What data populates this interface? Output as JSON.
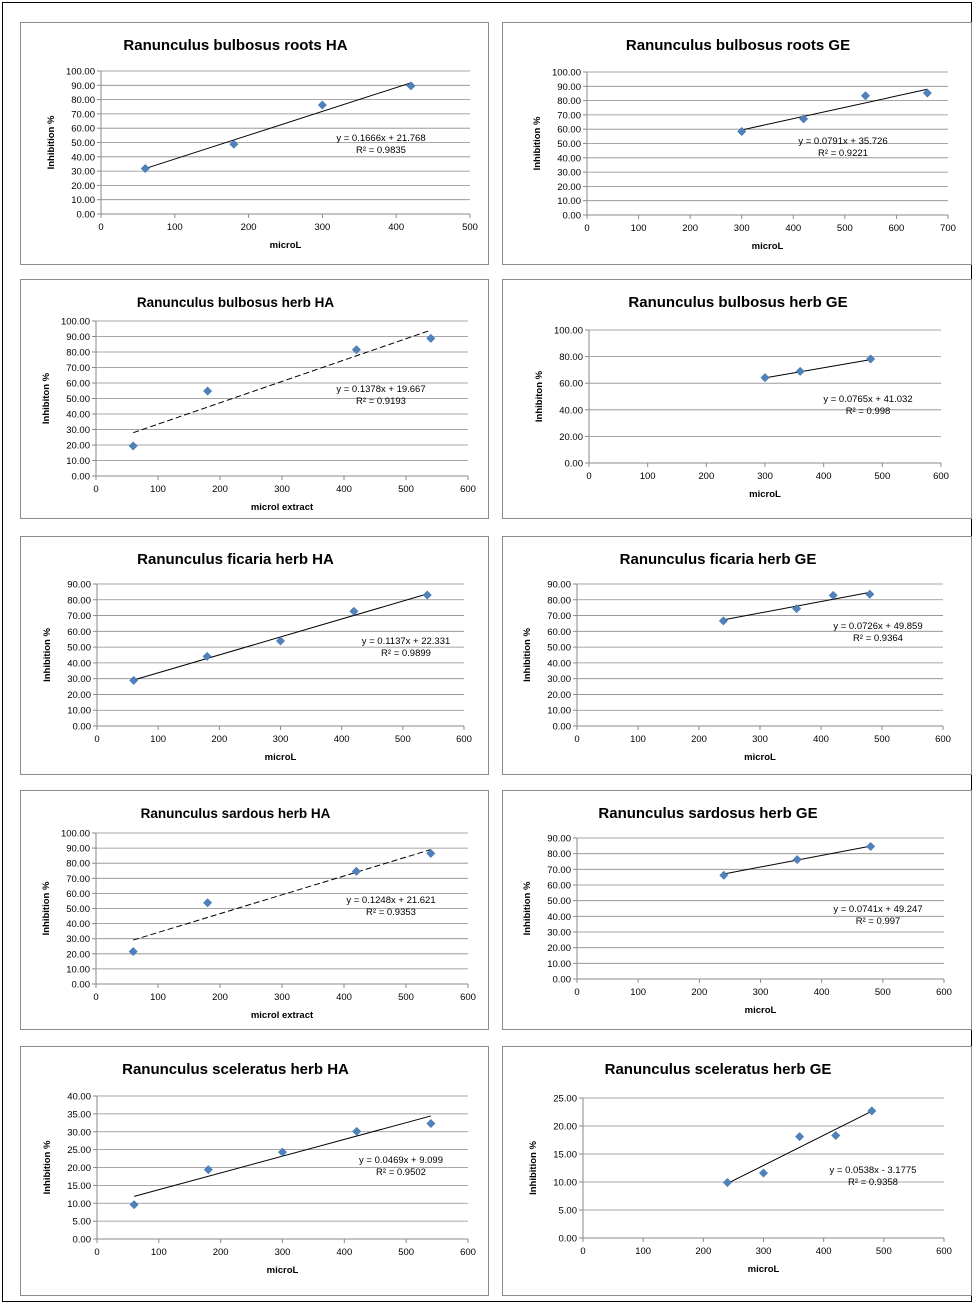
{
  "chart_data": [
    {
      "type": "scatter",
      "title": "Ranunculus bulbosus roots HA",
      "xlabel": "microL",
      "ylabel": "Inhibition %",
      "xlim": [
        0,
        500
      ],
      "xticks": [
        "0",
        "100",
        "200",
        "300",
        "400",
        "500"
      ],
      "ylim": [
        0,
        100
      ],
      "yticks": [
        "0.00",
        "10.00",
        "20.00",
        "30.00",
        "40.00",
        "50.00",
        "60.00",
        "70.00",
        "80.00",
        "90.00",
        "100.00"
      ],
      "x": [
        60,
        180,
        300,
        420
      ],
      "y": [
        31.8,
        48.8,
        76.2,
        89.6
      ],
      "trendline": {
        "slope": 0.1666,
        "intercept": 21.768,
        "style": "solid"
      },
      "equation": "y = 0.1666x + 21.768",
      "r2": "R² = 0.9835"
    },
    {
      "type": "scatter",
      "title": "Ranunculus bulbosus roots GE",
      "xlabel": "microL",
      "ylabel": "Inhibition %",
      "xlim": [
        0,
        700
      ],
      "xticks": [
        "0",
        "100",
        "200",
        "300",
        "400",
        "500",
        "600",
        "700"
      ],
      "ylim": [
        0,
        100
      ],
      "yticks": [
        "0.00",
        "10.00",
        "20.00",
        "30.00",
        "40.00",
        "50.00",
        "60.00",
        "70.00",
        "80.00",
        "90.00",
        "100.00"
      ],
      "x": [
        300,
        420,
        540,
        660
      ],
      "y": [
        58.4,
        67.2,
        83.4,
        85.3
      ],
      "trendline": {
        "slope": 0.0791,
        "intercept": 35.726,
        "style": "solid"
      },
      "equation": "y = 0.0791x + 35.726",
      "r2": "R² = 0.9221"
    },
    {
      "type": "scatter",
      "title": "Ranunculus bulbosus herb HA",
      "xlabel": "microl extract",
      "ylabel": "Inhibiton %",
      "xlim": [
        0,
        600
      ],
      "xticks": [
        "0",
        "100",
        "200",
        "300",
        "400",
        "500",
        "600"
      ],
      "ylim": [
        0,
        100
      ],
      "yticks": [
        "0.00",
        "10.00",
        "20.00",
        "30.00",
        "40.00",
        "50.00",
        "60.00",
        "70.00",
        "80.00",
        "90.00",
        "100.00"
      ],
      "x": [
        60,
        180,
        420,
        540
      ],
      "y": [
        19.4,
        54.8,
        81.5,
        88.8
      ],
      "trendline": {
        "slope": 0.1378,
        "intercept": 19.667,
        "style": "dashed"
      },
      "equation": "y = 0.1378x + 19.667",
      "r2": "R² = 0.9193"
    },
    {
      "type": "scatter",
      "title": "Ranunculus bulbosus herb GE",
      "xlabel": "microL",
      "ylabel": "Inhibiton %",
      "xlim": [
        0,
        600
      ],
      "xticks": [
        "0",
        "100",
        "200",
        "300",
        "400",
        "500",
        "600"
      ],
      "ylim": [
        0,
        100
      ],
      "yticks": [
        "0.00",
        "20.00",
        "40.00",
        "60.00",
        "80.00",
        "100.00"
      ],
      "x": [
        300,
        360,
        480
      ],
      "y": [
        64.2,
        68.9,
        78.2
      ],
      "trendline": {
        "slope": 0.0765,
        "intercept": 41.032,
        "style": "solid"
      },
      "equation": "y = 0.0765x + 41.032",
      "r2": "R² = 0.998"
    },
    {
      "type": "scatter",
      "title": "Ranunculus ficaria herb HA",
      "xlabel": "microL",
      "ylabel": "Inhibition %",
      "xlim": [
        0,
        600
      ],
      "xticks": [
        "0",
        "100",
        "200",
        "300",
        "400",
        "500",
        "600"
      ],
      "ylim": [
        0,
        90
      ],
      "yticks": [
        "0.00",
        "10.00",
        "20.00",
        "30.00",
        "40.00",
        "50.00",
        "60.00",
        "70.00",
        "80.00",
        "90.00"
      ],
      "x": [
        60,
        180,
        300,
        420,
        540
      ],
      "y": [
        28.9,
        44.1,
        53.9,
        72.7,
        83.0
      ],
      "trendline": {
        "slope": 0.1137,
        "intercept": 22.331,
        "style": "solid"
      },
      "equation": "y = 0.1137x + 22.331",
      "r2": "R² = 0.9899"
    },
    {
      "type": "scatter",
      "title": "Ranunculus ficaria herb GE",
      "xlabel": "microL",
      "ylabel": "Inhibition %",
      "xlim": [
        0,
        600
      ],
      "xticks": [
        "0",
        "100",
        "200",
        "300",
        "400",
        "500",
        "600"
      ],
      "ylim": [
        0,
        90
      ],
      "yticks": [
        "0.00",
        "10.00",
        "20.00",
        "30.00",
        "40.00",
        "50.00",
        "60.00",
        "70.00",
        "80.00",
        "90.00"
      ],
      "x": [
        240,
        360,
        420,
        480
      ],
      "y": [
        66.6,
        74.4,
        82.8,
        83.5
      ],
      "trendline": {
        "slope": 0.0726,
        "intercept": 49.859,
        "style": "solid"
      },
      "equation": "y = 0.0726x + 49.859",
      "r2": "R² = 0.9364"
    },
    {
      "type": "scatter",
      "title": "Ranunculus sardous herb HA",
      "xlabel": "microl extract",
      "ylabel": "Inhibition %",
      "xlim": [
        0,
        600
      ],
      "xticks": [
        "0",
        "100",
        "200",
        "300",
        "400",
        "500",
        "600"
      ],
      "ylim": [
        0,
        100
      ],
      "yticks": [
        "0.00",
        "10.00",
        "20.00",
        "30.00",
        "40.00",
        "50.00",
        "60.00",
        "70.00",
        "80.00",
        "90.00",
        "100.00"
      ],
      "x": [
        60,
        180,
        420,
        540
      ],
      "y": [
        21.5,
        53.8,
        74.6,
        86.5
      ],
      "trendline": {
        "slope": 0.1248,
        "intercept": 21.621,
        "style": "dashed"
      },
      "equation": "y = 0.1248x + 21.621",
      "r2": "R² = 0.9353"
    },
    {
      "type": "scatter",
      "title": "Ranunculus sardosus herb GE",
      "xlabel": "microL",
      "ylabel": "Inhibition %",
      "xlim": [
        0,
        600
      ],
      "xticks": [
        "0",
        "100",
        "200",
        "300",
        "400",
        "500",
        "600"
      ],
      "ylim": [
        0,
        90
      ],
      "yticks": [
        "0.00",
        "10.00",
        "20.00",
        "30.00",
        "40.00",
        "50.00",
        "60.00",
        "70.00",
        "80.00",
        "90.00"
      ],
      "x": [
        240,
        360,
        480
      ],
      "y": [
        66.2,
        76.2,
        84.6
      ],
      "trendline": {
        "slope": 0.0741,
        "intercept": 49.247,
        "style": "solid"
      },
      "equation": "y = 0.0741x + 49.247",
      "r2": "R² = 0.997"
    },
    {
      "type": "scatter",
      "title": "Ranunculus sceleratus herb HA",
      "xlabel": "microL",
      "ylabel": "Inhibition %",
      "xlim": [
        0,
        600
      ],
      "xticks": [
        "0",
        "100",
        "200",
        "300",
        "400",
        "500",
        "600"
      ],
      "ylim": [
        0,
        40
      ],
      "yticks": [
        "0.00",
        "5.00",
        "10.00",
        "15.00",
        "20.00",
        "25.00",
        "30.00",
        "35.00",
        "40.00"
      ],
      "x": [
        60,
        180,
        300,
        420,
        540
      ],
      "y": [
        9.6,
        19.4,
        24.3,
        30.1,
        32.3
      ],
      "trendline": {
        "slope": 0.0469,
        "intercept": 9.099,
        "style": "solid"
      },
      "equation": "y = 0.0469x + 9.099",
      "r2": "R² = 0.9502"
    },
    {
      "type": "scatter",
      "title": "Ranunculus sceleratus herb GE",
      "xlabel": "microL",
      "ylabel": "Inhibition %",
      "xlim": [
        0,
        600
      ],
      "xticks": [
        "0",
        "100",
        "200",
        "300",
        "400",
        "500",
        "600"
      ],
      "ylim": [
        0,
        25
      ],
      "yticks": [
        "0.00",
        "5.00",
        "10.00",
        "15.00",
        "20.00",
        "25.00"
      ],
      "x": [
        240,
        300,
        360,
        420,
        480
      ],
      "y": [
        9.9,
        11.6,
        18.1,
        18.3,
        22.7
      ],
      "trendline": {
        "slope": 0.0538,
        "intercept": -3.1775,
        "style": "solid"
      },
      "equation": "y = 0.0538x - 3.1775",
      "r2": "R² = 0.9358"
    }
  ]
}
